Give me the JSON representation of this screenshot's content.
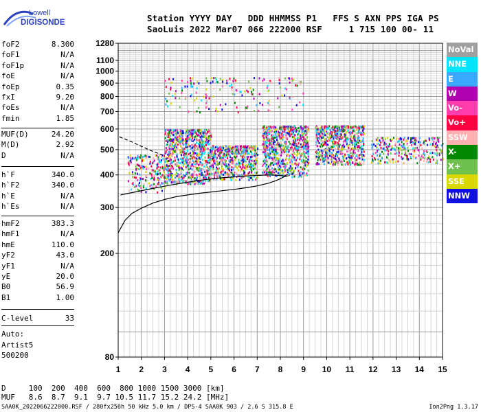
{
  "logo": {
    "line1": "Lowell",
    "line2": "DIGISONDE"
  },
  "header": {
    "line1": "Station YYYY DAY   DDD HHMMSS P1   FFS S AXN PPS IGA PS",
    "line2": "SaoLuis 2022 Mar07 066 222000 RSF     1 715 100 00- 11"
  },
  "params": {
    "group1": [
      {
        "name": "foF2",
        "value": "8.300"
      },
      {
        "name": "foF1",
        "value": "N/A"
      },
      {
        "name": "foF1p",
        "value": "N/A"
      },
      {
        "name": "foE",
        "value": "N/A"
      },
      {
        "name": "foEp",
        "value": "0.35"
      },
      {
        "name": "fxI",
        "value": "9.20"
      },
      {
        "name": "foEs",
        "value": "N/A"
      },
      {
        "name": "fmin",
        "value": "1.85"
      }
    ],
    "group2": [
      {
        "name": "MUF(D)",
        "value": "24.20"
      },
      {
        "name": "M(D)",
        "value": "2.92"
      },
      {
        "name": "D",
        "value": "N/A"
      }
    ],
    "group3": [
      {
        "name": "h`F",
        "value": "340.0"
      },
      {
        "name": "h`F2",
        "value": "340.0"
      },
      {
        "name": "h`E",
        "value": "N/A"
      },
      {
        "name": "h`Es",
        "value": "N/A"
      }
    ],
    "group4": [
      {
        "name": "hmF2",
        "value": "383.3"
      },
      {
        "name": "hmF1",
        "value": "N/A"
      },
      {
        "name": "hmE",
        "value": "110.0"
      },
      {
        "name": "yF2",
        "value": "43.0"
      },
      {
        "name": "yF1",
        "value": "N/A"
      },
      {
        "name": "yE",
        "value": "20.0"
      },
      {
        "name": "B0",
        "value": "56.9"
      },
      {
        "name": "B1",
        "value": "1.00"
      }
    ],
    "group5": [
      {
        "name": "C-level",
        "value": "33"
      }
    ]
  },
  "auto": {
    "line1": "Auto:",
    "line2": "Artist5",
    "line3": "500200"
  },
  "legend": [
    {
      "label": "NoVal",
      "color": "#a0a0a0"
    },
    {
      "label": "NNE",
      "color": "#00e5ff"
    },
    {
      "label": "E",
      "color": "#3aa8ff"
    },
    {
      "label": "W",
      "color": "#b000b0"
    },
    {
      "label": "Vo-",
      "color": "#ff3cac"
    },
    {
      "label": "Vo+",
      "color": "#ff0040"
    },
    {
      "label": "SSW",
      "color": "#ffb0b0"
    },
    {
      "label": "X-",
      "color": "#008800"
    },
    {
      "label": "X+",
      "color": "#70c050"
    },
    {
      "label": "SSE",
      "color": "#d8d800"
    },
    {
      "label": "NNW",
      "color": "#1010e0"
    }
  ],
  "muf_table": {
    "row1": "D     100  200  400  600  800 1000 1500 3000 [km]",
    "row2": "MUF   8.6  8.7  9.1  9.7 10.5 11.7 15.2 24.2 [MHz]"
  },
  "footer": {
    "left": "SAA0K_2022066222000.RSF / 280fx256h 50 kHz 5.0 km / DPS-4 SAA0K 903 / 2.6 S 315.8 E",
    "right": "Ion2Png 1.3.17"
  },
  "chart_data": {
    "type": "scatter",
    "title": "",
    "xlabel": "",
    "ylabel": "",
    "xlim": [
      1,
      15
    ],
    "ylim": [
      80,
      1280
    ],
    "xticks": [
      1,
      2,
      3,
      4,
      5,
      6,
      7,
      8,
      9,
      10,
      11,
      12,
      13,
      14,
      15
    ],
    "yticks": [
      80,
      200,
      300,
      400,
      500,
      600,
      700,
      800,
      900,
      1000,
      1100,
      1280
    ],
    "y_scale": "log",
    "grid": true,
    "legend_position": "right",
    "trace_curve": {
      "name": "",
      "x": [
        1.0,
        1.3,
        1.6,
        2.0,
        2.5,
        3.0,
        3.5,
        4.0,
        4.5,
        5.0,
        5.5,
        6.0,
        6.5,
        7.0,
        7.5,
        7.8,
        8.0,
        8.2,
        8.3
      ],
      "y": [
        240,
        268,
        285,
        298,
        312,
        322,
        330,
        335,
        340,
        344,
        348,
        352,
        357,
        363,
        372,
        380,
        387,
        395,
        402
      ]
    },
    "profile_curve": {
      "name": "",
      "x": [
        1.1,
        1.8,
        2.5,
        3.0,
        3.5,
        4.0,
        4.5,
        5.0,
        5.5,
        6.0,
        6.5,
        7.0,
        7.5,
        8.0,
        8.3
      ],
      "y": [
        335,
        345,
        355,
        362,
        369,
        375,
        381,
        386,
        390,
        393,
        396,
        398,
        400,
        398,
        395
      ]
    },
    "dashed_curve": {
      "name": "",
      "x": [
        1.05,
        1.5,
        2.0,
        2.5,
        2.9
      ],
      "y": [
        560,
        540,
        515,
        492,
        478
      ]
    },
    "echo_regions": [
      {
        "x_range": [
          1.4,
          3.0
        ],
        "y_range": [
          345,
          480
        ],
        "density": "medium"
      },
      {
        "x_range": [
          3.0,
          5.0
        ],
        "y_range": [
          370,
          600
        ],
        "density": "high"
      },
      {
        "x_range": [
          5.0,
          7.0
        ],
        "y_range": [
          385,
          520
        ],
        "density": "high"
      },
      {
        "x_range": [
          7.2,
          9.2
        ],
        "y_range": [
          395,
          620
        ],
        "density": "high"
      },
      {
        "x_range": [
          9.5,
          11.6
        ],
        "y_range": [
          440,
          620
        ],
        "density": "high"
      },
      {
        "x_range": [
          11.9,
          15.0
        ],
        "y_range": [
          445,
          560
        ],
        "density": "medium"
      },
      {
        "x_range": [
          3.0,
          9.0
        ],
        "y_range": [
          700,
          950
        ],
        "density": "low"
      }
    ]
  }
}
